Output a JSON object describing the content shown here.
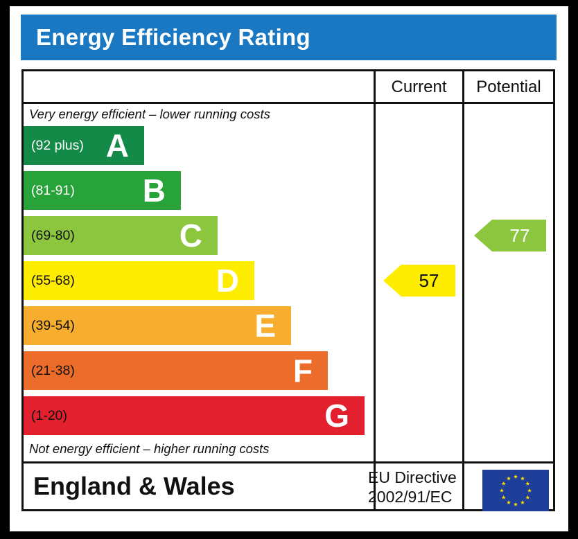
{
  "title": "Energy Efficiency Rating",
  "headers": {
    "current": "Current",
    "potential": "Potential"
  },
  "notes": {
    "top": "Very energy efficient – lower running costs",
    "bottom": "Not energy efficient – higher running costs"
  },
  "colors": {
    "title_bar": "#1a78c2",
    "flag": "#1f3e99",
    "stars": "#ffe500"
  },
  "chart_data": {
    "type": "bar",
    "categories": [
      "A",
      "B",
      "C",
      "D",
      "E",
      "F",
      "G"
    ],
    "bands": [
      {
        "letter": "A",
        "range": "(92 plus)",
        "color": "#138a48",
        "text_color": "#ffffff",
        "min": 92,
        "max": 100
      },
      {
        "letter": "B",
        "range": "(81-91)",
        "color": "#27a33a",
        "text_color": "#ffffff",
        "min": 81,
        "max": 91
      },
      {
        "letter": "C",
        "range": "(69-80)",
        "color": "#8cc63e",
        "text_color": "#111111",
        "min": 69,
        "max": 80
      },
      {
        "letter": "D",
        "range": "(55-68)",
        "color": "#ffed00",
        "text_color": "#111111",
        "min": 55,
        "max": 68
      },
      {
        "letter": "E",
        "range": "(39-54)",
        "color": "#f7ad2e",
        "text_color": "#111111",
        "min": 39,
        "max": 54
      },
      {
        "letter": "F",
        "range": "(21-38)",
        "color": "#ec6c2c",
        "text_color": "#111111",
        "min": 21,
        "max": 38
      },
      {
        "letter": "G",
        "range": "(1-20)",
        "color": "#e2202e",
        "text_color": "#111111",
        "min": 1,
        "max": 20
      }
    ],
    "current": {
      "value": 57,
      "band": "D",
      "color": "#ffed00",
      "text_color": "#111111"
    },
    "potential": {
      "value": 77,
      "band": "C",
      "color": "#8cc63e",
      "text_color": "#ffffff"
    }
  },
  "footer": {
    "region": "England & Wales",
    "directive_line1": "EU Directive",
    "directive_line2": "2002/91/EC",
    "flag_icon": "eu-flag-icon"
  }
}
